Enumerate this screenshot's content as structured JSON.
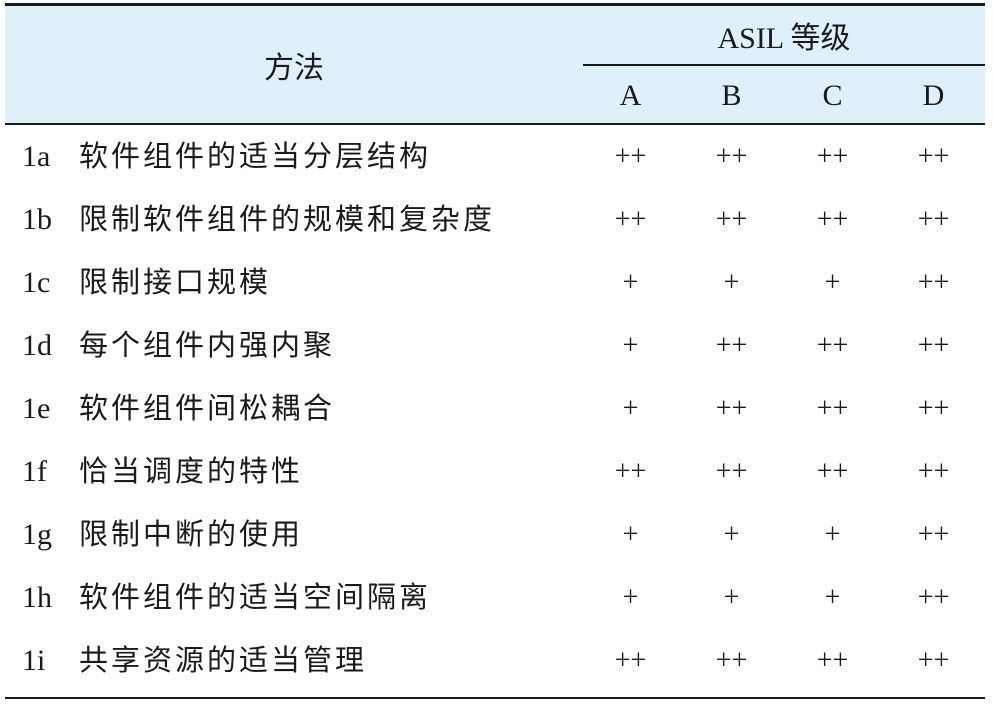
{
  "header": {
    "method": "方法",
    "asil": "ASIL 等级",
    "levels": [
      "A",
      "B",
      "C",
      "D"
    ]
  },
  "colors": {
    "header_bg": "#dff0fa",
    "rule": "#1a1a1a"
  },
  "rows": [
    {
      "id": "1a",
      "name": "软件组件的适当分层结构",
      "values": [
        "++",
        "++",
        "++",
        "++"
      ]
    },
    {
      "id": "1b",
      "name": "限制软件组件的规模和复杂度",
      "values": [
        "++",
        "++",
        "++",
        "++"
      ]
    },
    {
      "id": "1c",
      "name": "限制接口规模",
      "values": [
        "+",
        "+",
        "+",
        "++"
      ]
    },
    {
      "id": "1d",
      "name": "每个组件内强内聚",
      "values": [
        "+",
        "++",
        "++",
        "++"
      ]
    },
    {
      "id": "1e",
      "name": "软件组件间松耦合",
      "values": [
        "+",
        "++",
        "++",
        "++"
      ]
    },
    {
      "id": "1f",
      "name": "恰当调度的特性",
      "values": [
        "++",
        "++",
        "++",
        "++"
      ]
    },
    {
      "id": "1g",
      "name": "限制中断的使用",
      "values": [
        "+",
        "+",
        "+",
        "++"
      ]
    },
    {
      "id": "1h",
      "name": "软件组件的适当空间隔离",
      "values": [
        "+",
        "+",
        "+",
        "++"
      ]
    },
    {
      "id": "1i",
      "name": "共享资源的适当管理",
      "values": [
        "++",
        "++",
        "++",
        "++"
      ]
    }
  ]
}
